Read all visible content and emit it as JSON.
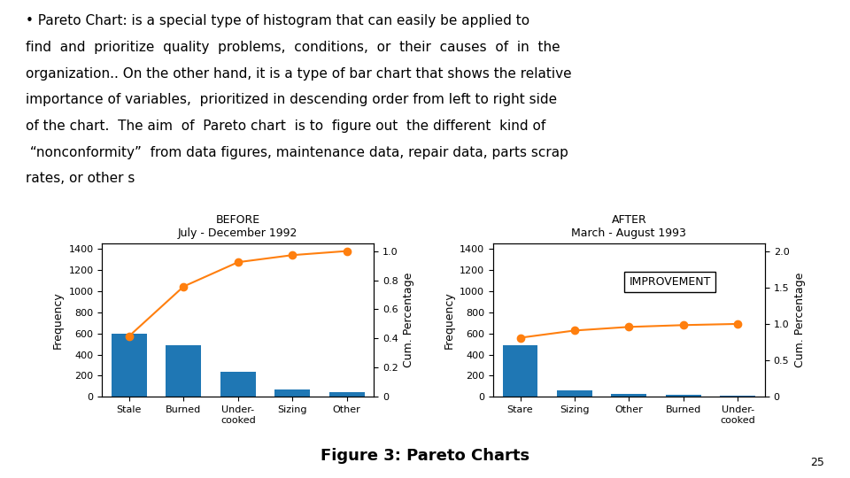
{
  "chart_data": [
    {
      "type": "bar",
      "title": "BEFORE",
      "subtitle": "July - December 1992",
      "categories": [
        "Stale",
        "Burned",
        "Under-\ncooked",
        "Sizing",
        "Other"
      ],
      "series": [
        {
          "type": "bar",
          "values": [
            600,
            490,
            240,
            70,
            40
          ]
        },
        {
          "type": "line",
          "axis": "y2",
          "marker": "o",
          "values": [
            0.4166666666666667,
            0.7569444444444444,
            0.923611111111111,
            0.9722222222222222,
            1.0
          ]
        }
      ],
      "ylabel": "Frequency",
      "y2label": "Cum. Percentage",
      "ylim": [
        0,
        1450
      ],
      "yticks": [
        0,
        200,
        400,
        600,
        800,
        1000,
        1200,
        1400
      ],
      "y2lim": [
        0,
        1.05
      ],
      "y2ticks": [
        0,
        0.2,
        0.4,
        0.6,
        0.8,
        {
          "value": 1,
          "label": "1.0"
        }
      ]
    },
    {
      "type": "bar",
      "title": "AFTER",
      "subtitle": "March - August 1993",
      "categories": [
        "Stare",
        "Sizing",
        "Other",
        "Burned",
        "Under-\ncooked"
      ],
      "series": [
        {
          "type": "bar",
          "values": [
            490,
            60,
            30,
            15,
            10
          ]
        },
        {
          "type": "line",
          "axis": "y2",
          "marker": "o",
          "values": [
            0.8099173553719008,
            0.9090909090909091,
            0.9586776859504132,
            0.9834710743801653,
            1.0
          ]
        }
      ],
      "ylabel": "Frequency",
      "y2label": "Cum. Percentage",
      "ylim": [
        0,
        1450
      ],
      "yticks": [
        0,
        200,
        400,
        600,
        800,
        1000,
        1200,
        1400
      ],
      "y2lim": [
        0,
        2.1
      ],
      "y2ticks": [
        0,
        0.5,
        {
          "value": 1,
          "label": "1.0"
        },
        1.5,
        {
          "value": 2,
          "label": "2.0"
        }
      ],
      "annotation": "IMPROVEMENT"
    }
  ],
  "annotations": [
    "• Pareto Chart: is a special type of histogram that can easily be applied to",
    "find  and  prioritize  quality  problems,  conditions,  or  their  causes  of  in  the",
    "organization.. On the other hand, it is a type of bar chart that shows the relative",
    "importance of variables,  prioritized in descending order from left to right side",
    "of the chart.  The aim  of  Pareto chart  is to  figure out  the different  kind of",
    " “nonconformity”  from data figures, maintenance data, repair data, parts scrap",
    "rates, or other s"
  ],
  "caption": "Figure 3: Pareto Charts",
  "page_number": "25"
}
